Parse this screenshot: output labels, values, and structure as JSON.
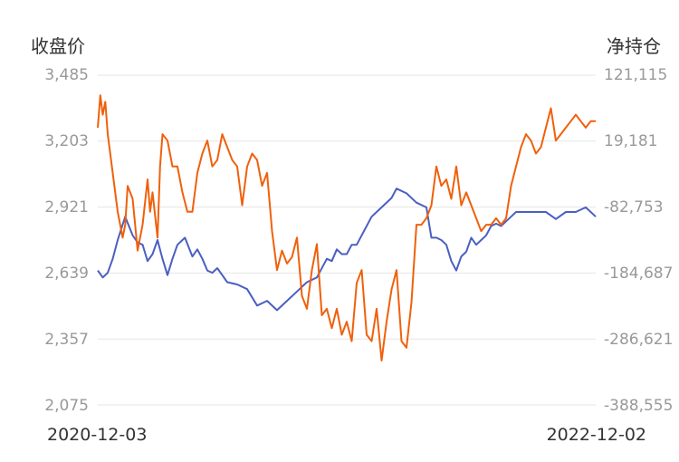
{
  "chart_data": {
    "type": "line",
    "left_axis_title": "收盘价",
    "right_axis_title": "净持仓",
    "left_ticks": [
      "3,485",
      "3,203",
      "2,921",
      "2,639",
      "2,357",
      "2,075"
    ],
    "right_ticks": [
      "121,115",
      "19,181",
      "-82,753",
      "-184,687",
      "-286,621",
      "-388,555"
    ],
    "ylim_left": [
      2075,
      3485
    ],
    "ylim_right": [
      -388555,
      121115
    ],
    "x_start": "2020-12-03",
    "x_end": "2022-12-02",
    "grid": true,
    "series": [
      {
        "axis": "left",
        "color": "#4a5fc1",
        "x": [
          0,
          0.01,
          0.02,
          0.03,
          0.04,
          0.055,
          0.07,
          0.08,
          0.09,
          0.1,
          0.11,
          0.12,
          0.13,
          0.14,
          0.15,
          0.16,
          0.175,
          0.19,
          0.2,
          0.21,
          0.22,
          0.23,
          0.24,
          0.25,
          0.26,
          0.28,
          0.3,
          0.32,
          0.34,
          0.36,
          0.38,
          0.4,
          0.42,
          0.44,
          0.46,
          0.47,
          0.48,
          0.49,
          0.5,
          0.51,
          0.52,
          0.53,
          0.55,
          0.57,
          0.59,
          0.6,
          0.62,
          0.64,
          0.66,
          0.67,
          0.68,
          0.69,
          0.7,
          0.71,
          0.72,
          0.73,
          0.74,
          0.75,
          0.76,
          0.77,
          0.78,
          0.79,
          0.8,
          0.81,
          0.82,
          0.83,
          0.84,
          0.85,
          0.86,
          0.88,
          0.9,
          0.92,
          0.94,
          0.96,
          0.98,
          1
        ],
        "values": [
          2650,
          2620,
          2640,
          2700,
          2780,
          2880,
          2800,
          2770,
          2760,
          2690,
          2720,
          2780,
          2700,
          2630,
          2700,
          2760,
          2790,
          2710,
          2740,
          2700,
          2650,
          2640,
          2660,
          2630,
          2600,
          2590,
          2570,
          2500,
          2520,
          2480,
          2520,
          2560,
          2600,
          2620,
          2700,
          2690,
          2740,
          2720,
          2720,
          2760,
          2760,
          2800,
          2880,
          2920,
          2960,
          3000,
          2980,
          2940,
          2920,
          2790,
          2790,
          2780,
          2760,
          2690,
          2650,
          2710,
          2730,
          2790,
          2760,
          2780,
          2800,
          2840,
          2850,
          2840,
          2860,
          2880,
          2900,
          2900,
          2900,
          2900,
          2900,
          2870,
          2900,
          2900,
          2920,
          2880
        ]
      },
      {
        "axis": "right",
        "color": "#f0600b",
        "x": [
          0,
          0.005,
          0.01,
          0.015,
          0.02,
          0.03,
          0.04,
          0.05,
          0.055,
          0.06,
          0.07,
          0.08,
          0.09,
          0.1,
          0.105,
          0.11,
          0.12,
          0.125,
          0.13,
          0.14,
          0.15,
          0.16,
          0.17,
          0.18,
          0.19,
          0.2,
          0.21,
          0.22,
          0.23,
          0.24,
          0.25,
          0.26,
          0.27,
          0.28,
          0.29,
          0.3,
          0.31,
          0.32,
          0.33,
          0.34,
          0.35,
          0.36,
          0.37,
          0.38,
          0.39,
          0.4,
          0.41,
          0.42,
          0.43,
          0.44,
          0.45,
          0.46,
          0.47,
          0.48,
          0.49,
          0.5,
          0.51,
          0.52,
          0.53,
          0.54,
          0.55,
          0.56,
          0.57,
          0.58,
          0.59,
          0.6,
          0.61,
          0.62,
          0.63,
          0.64,
          0.65,
          0.66,
          0.67,
          0.68,
          0.69,
          0.7,
          0.71,
          0.72,
          0.73,
          0.74,
          0.75,
          0.76,
          0.77,
          0.78,
          0.79,
          0.8,
          0.81,
          0.82,
          0.83,
          0.84,
          0.85,
          0.86,
          0.87,
          0.88,
          0.89,
          0.9,
          0.91,
          0.92,
          0.93,
          0.94,
          0.95,
          0.96,
          0.97,
          0.98,
          0.99,
          1
        ],
        "values": [
          40000,
          90000,
          60000,
          80000,
          30000,
          -30000,
          -90000,
          -130000,
          -110000,
          -50000,
          -70000,
          -150000,
          -110000,
          -40000,
          -90000,
          -60000,
          -130000,
          -20000,
          30000,
          20000,
          -20000,
          -20000,
          -60000,
          -90000,
          -90000,
          -30000,
          0,
          20000,
          -20000,
          -10000,
          30000,
          10000,
          -10000,
          -20000,
          -80000,
          -20000,
          0,
          -10000,
          -50000,
          -30000,
          -120000,
          -180000,
          -150000,
          -170000,
          -160000,
          -130000,
          -220000,
          -240000,
          -180000,
          -140000,
          -250000,
          -240000,
          -270000,
          -240000,
          -280000,
          -260000,
          -290000,
          -200000,
          -180000,
          -280000,
          -290000,
          -240000,
          -320000,
          -260000,
          -210000,
          -180000,
          -290000,
          -300000,
          -230000,
          -110000,
          -110000,
          -100000,
          -80000,
          -20000,
          -50000,
          -40000,
          -70000,
          -20000,
          -80000,
          -60000,
          -80000,
          -100000,
          -120000,
          -110000,
          -110000,
          -100000,
          -110000,
          -100000,
          -50000,
          -20000,
          10000,
          30000,
          20000,
          0,
          10000,
          40000,
          70000,
          20000,
          30000,
          40000,
          50000,
          60000,
          50000,
          40000,
          50000,
          50000
        ]
      }
    ]
  }
}
